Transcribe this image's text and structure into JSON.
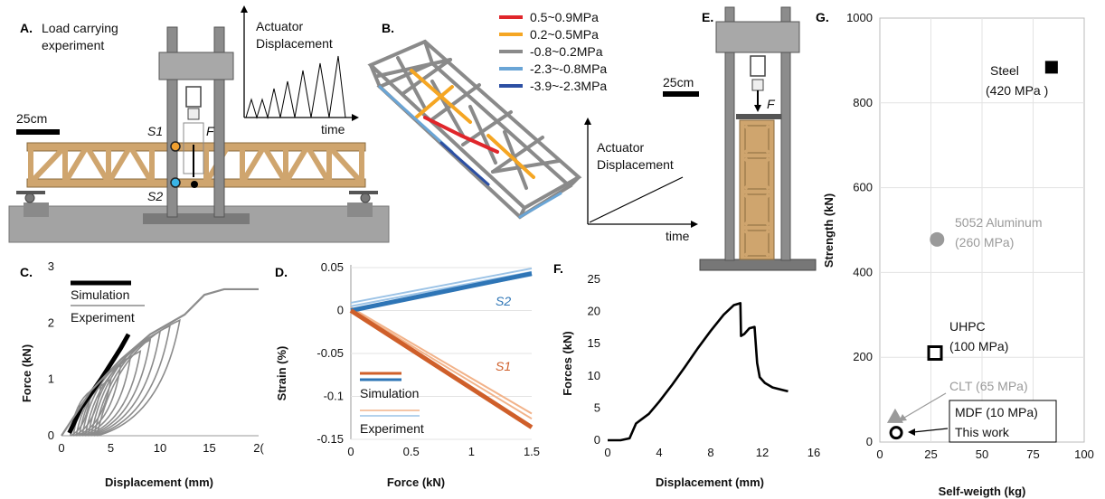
{
  "panels": {
    "A": {
      "letter": "A.",
      "title_line1": "Load carrying",
      "title_line2": "experiment",
      "scale_label": "25cm",
      "sensor1": "S1",
      "sensor2": "S2",
      "force": "F",
      "inset_ylabel_line1": "Actuator",
      "inset_ylabel_line2": "Displacement",
      "inset_xlabel": "time"
    },
    "B": {
      "letter": "B.",
      "legend": [
        {
          "label": "0.5~0.9MPa",
          "color": "#e0262b"
        },
        {
          "label": "0.2~0.5MPa",
          "color": "#f5a623"
        },
        {
          "label": "-0.8~0.2MPa",
          "color": "#8a8a8a"
        },
        {
          "label": "-2.3~-0.8MPa",
          "color": "#6aa5d6"
        },
        {
          "label": "-3.9~-2.3MPa",
          "color": "#2c4fa3"
        }
      ],
      "inset_ylabel_line1": "Actuator",
      "inset_ylabel_line2": "Displacement",
      "inset_xlabel": "time"
    },
    "E": {
      "letter": "E.",
      "scale_label": "25cm",
      "force": "F"
    }
  },
  "colors": {
    "wood": "#cfa56e",
    "wood_edge": "#8a6a3e",
    "steel": "#9a9a9a",
    "steel_dark": "#6e6e6e",
    "sim_black": "#000000",
    "exp_gray": "#8c8c8c",
    "s1_dark": "#cf5f2a",
    "s1_light": "#f2b38a",
    "s2_dark": "#2e75b6",
    "s2_light": "#9cc3e6"
  },
  "chart_data": [
    {
      "panel": "C.",
      "type": "line",
      "xlabel": "Displacement (mm)",
      "ylabel": "Force (kN)",
      "xlim": [
        0,
        20
      ],
      "ylim": [
        0,
        3
      ],
      "xticks": [
        "0",
        "5",
        "10",
        "15",
        "2("
      ],
      "yticks": [
        "0",
        "1",
        "2",
        "3"
      ],
      "legend": [
        "Simulation",
        "Experiment"
      ],
      "series": [
        {
          "name": "Simulation",
          "x": [
            0.8,
            2,
            4,
            6,
            6.8
          ],
          "y": [
            0.05,
            0.5,
            1.0,
            1.55,
            1.8
          ]
        },
        {
          "name": "Experiment",
          "x": [
            0,
            3,
            6,
            9,
            12.5,
            14.5,
            16.5,
            17.5,
            20
          ],
          "y": [
            0,
            0.8,
            1.35,
            1.8,
            2.15,
            2.5,
            2.6,
            2.6,
            2.6
          ]
        }
      ]
    },
    {
      "panel": "D.",
      "type": "line",
      "xlabel": "Force (kN)",
      "ylabel": "Strain (%)",
      "xlim": [
        0,
        1.5
      ],
      "ylim": [
        -0.15,
        0.05
      ],
      "xticks": [
        "0",
        "0.5",
        "1",
        "1.5"
      ],
      "yticks": [
        "0.05",
        "0",
        "-0.05",
        "-0.1",
        "-0.15"
      ],
      "legend": [
        "Simulation",
        "Experiment"
      ],
      "annotations": [
        "S2",
        "S1"
      ],
      "series": [
        {
          "name": "S2",
          "x": [
            0,
            1.5
          ],
          "y": [
            0,
            0.043
          ]
        },
        {
          "name": "S1",
          "x": [
            0,
            1.5
          ],
          "y": [
            0,
            -0.136
          ]
        }
      ]
    },
    {
      "panel": "F.",
      "type": "line",
      "xlabel": "Displacement (mm)",
      "ylabel": "Forces (kN)",
      "xlim": [
        0,
        16
      ],
      "ylim": [
        0,
        25
      ],
      "xticks": [
        "0",
        "4",
        "8",
        "12",
        "16"
      ],
      "yticks": [
        "0",
        "5",
        "10",
        "15",
        "20",
        "25"
      ],
      "series": [
        {
          "x": [
            0,
            1,
            1.7,
            2.2,
            2.6,
            3.2,
            4,
            5,
            6,
            7,
            8,
            9,
            9.8,
            10.3,
            10.35,
            10.6,
            11,
            11.4,
            11.6,
            11.8,
            12.2,
            12.8,
            13.6,
            14
          ],
          "y": [
            0,
            0,
            0.3,
            2.6,
            3.2,
            4.1,
            6.0,
            8.6,
            11.4,
            14.3,
            17.0,
            19.5,
            21.0,
            21.3,
            16.2,
            16.5,
            17.4,
            17.6,
            12.0,
            9.8,
            8.9,
            8.2,
            7.8,
            7.6
          ]
        }
      ]
    },
    {
      "panel": "G.",
      "type": "scatter",
      "xlabel": "Self-weigth (kg)",
      "ylabel": "Strength (kN)",
      "xlim": [
        0,
        100
      ],
      "ylim": [
        0,
        1000
      ],
      "xticks": [
        "0",
        "25",
        "50",
        "75",
        "100"
      ],
      "yticks": [
        "0",
        "200",
        "400",
        "600",
        "800",
        "1000"
      ],
      "points": [
        {
          "name_line1": "Steel",
          "name_line2": "(420 MPa )",
          "x": 84,
          "y": 884
        },
        {
          "name_line1": "5052 Aluminum",
          "name_line2": "(260 MPa)",
          "x": 28,
          "y": 478
        },
        {
          "name_line1": "UHPC",
          "name_line2": "(100 MPa)",
          "x": 27,
          "y": 210
        },
        {
          "name_line1": "CLT (65 MPa)",
          "name_line2": "",
          "x": 7.5,
          "y": 62
        },
        {
          "name_line1": "MDF (10 MPa)",
          "name_line2": "This work",
          "x": 8,
          "y": 22
        }
      ]
    }
  ]
}
